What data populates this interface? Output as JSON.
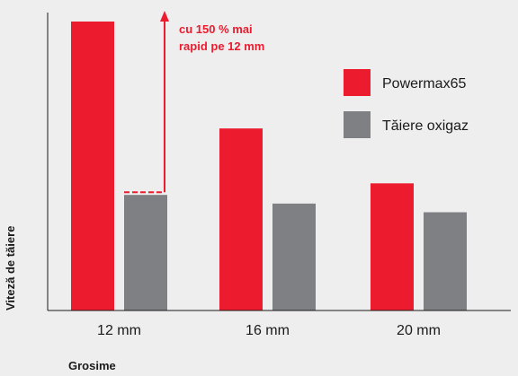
{
  "chart_data": {
    "type": "bar",
    "title": "",
    "xlabel": "Grosime",
    "ylabel": "Viteză de tăiere",
    "categories": [
      "12 mm",
      "16 mm",
      "20 mm"
    ],
    "series": [
      {
        "name": "Powermax65",
        "color": "#ec1c2e",
        "values": [
          100,
          63,
          44
        ]
      },
      {
        "name": "Tăiere oxigaz",
        "color": "#7f8083",
        "values": [
          40,
          37,
          34
        ]
      }
    ],
    "ylim": [
      0,
      100
    ],
    "grid": false,
    "legend_position": "right",
    "annotation": {
      "lines": [
        "cu 150 % mai",
        "rapid pe 12 mm"
      ],
      "category": "12 mm",
      "color": "#ec1c2e"
    }
  }
}
